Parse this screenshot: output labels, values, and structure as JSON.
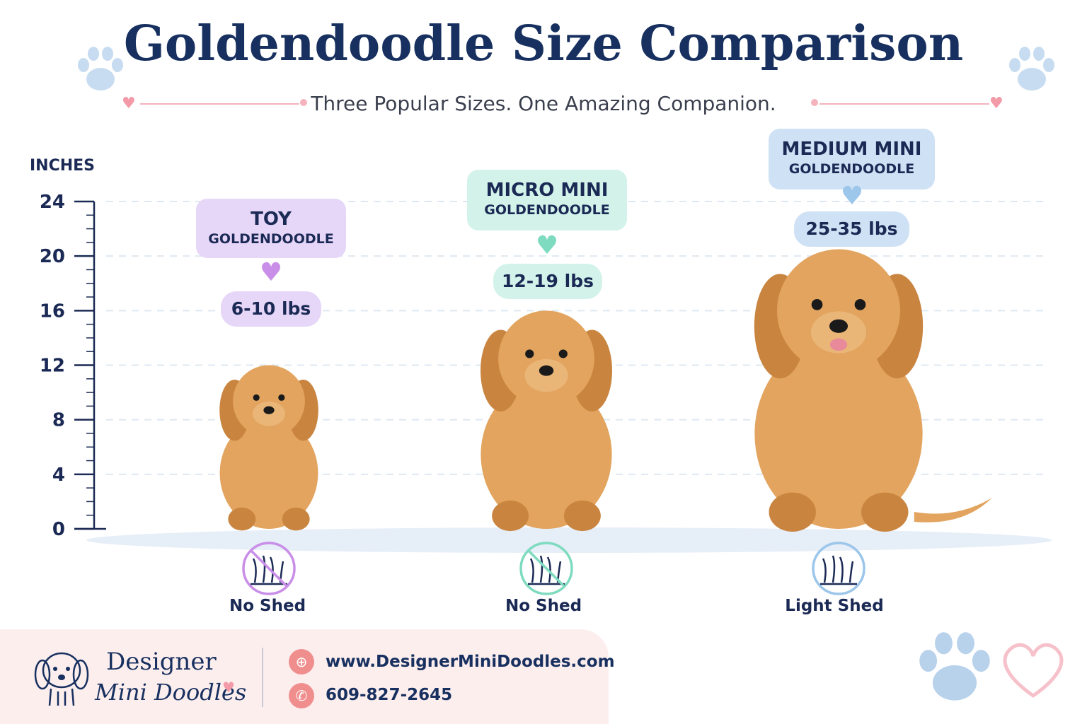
{
  "header": {
    "title": "Goldendoodle Size Comparison",
    "subtitle": "Three Popular Sizes. One Amazing Companion."
  },
  "chart_data": {
    "type": "bar",
    "ylabel": "INCHES",
    "ylim": [
      0,
      24
    ],
    "y_ticks": [
      0,
      4,
      8,
      12,
      16,
      20,
      24
    ],
    "y_tick_labels": [
      "0",
      "4",
      "8",
      "12",
      "16",
      "20",
      "24"
    ],
    "grid": true,
    "categories": [
      {
        "line1": "TOY",
        "line2": "GOLDENDOODLE"
      },
      {
        "line1": "MICRO MINI",
        "line2": "GOLDENDOODLE"
      },
      {
        "line1": "MEDIUM MINI",
        "line2": "GOLDENDOODLE"
      }
    ],
    "values": [
      12,
      16,
      20.5
    ],
    "weights": [
      "6-10 lbs",
      "12-19 lbs",
      "25-35 lbs"
    ],
    "shedding": [
      "No Shed",
      "No Shed",
      "Light Shed"
    ],
    "colors": {
      "toy": "#e6d6f8",
      "toy_heart": "#c98ee8",
      "micro": "#d3f3ea",
      "micro_heart": "#7fdbbf",
      "medium": "#cfe1f5",
      "medium_heart": "#9cc6ea",
      "dog_fur": "#e2a45e",
      "dog_fur_dark": "#c98540"
    }
  },
  "footer": {
    "brand_line1": "Designer",
    "brand_line2": "Mini Doodles",
    "website": "www.DesignerMiniDoodles.com",
    "phone": "609-827-2645",
    "website_icon": "globe-icon",
    "phone_icon": "phone-icon"
  }
}
